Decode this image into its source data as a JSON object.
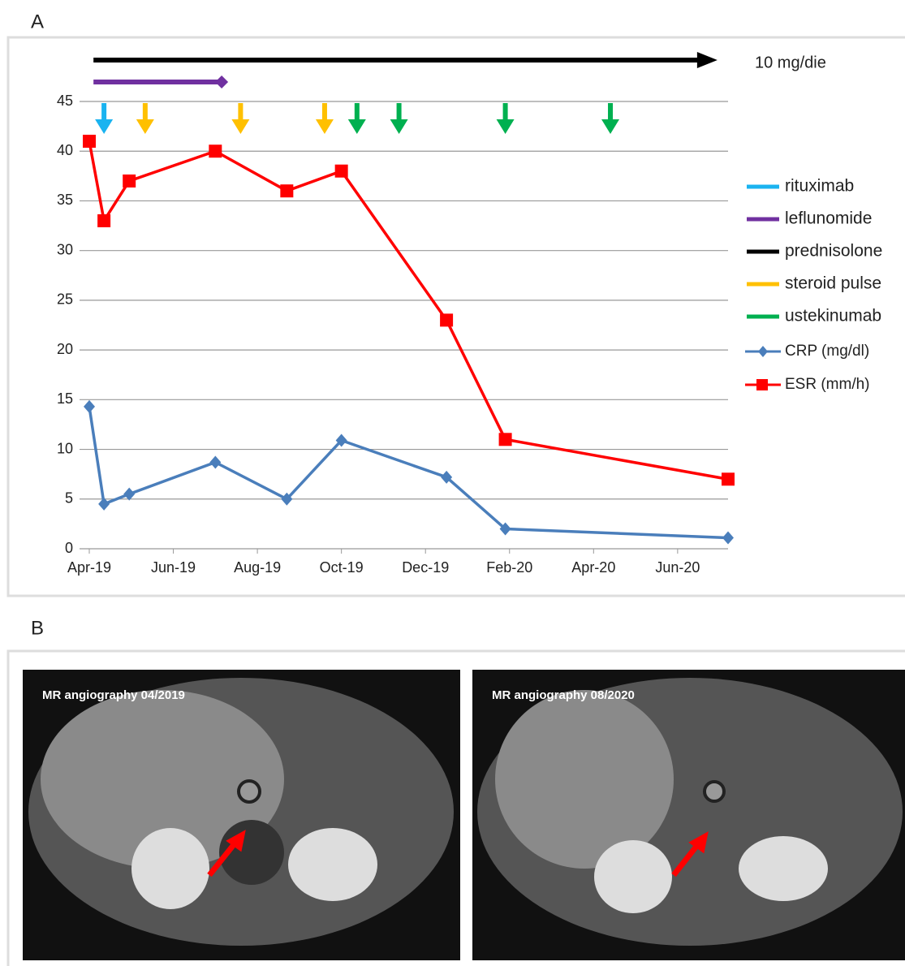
{
  "panel_a": {
    "label": "A"
  },
  "chart_data": {
    "type": "line",
    "x": [
      0,
      0.35,
      0.95,
      3.0,
      4.7,
      6.0,
      8.5,
      9.9,
      15.2
    ],
    "series": [
      {
        "name": "CRP (mg/dl)",
        "color": "#4a7ebb",
        "marker": "diamond",
        "values": [
          14.3,
          4.5,
          5.5,
          8.7,
          5.0,
          10.9,
          7.2,
          2.0,
          1.1
        ]
      },
      {
        "name": "ESR (mm/h)",
        "color": "#ff0000",
        "marker": "square",
        "values": [
          41,
          33,
          37,
          40,
          36,
          38,
          23,
          11,
          7
        ]
      }
    ],
    "xlim": [
      0,
      15.2
    ],
    "xticks": [
      {
        "value": 0,
        "label": "Apr-19"
      },
      {
        "value": 2,
        "label": "Jun-19"
      },
      {
        "value": 4,
        "label": "Aug-19"
      },
      {
        "value": 6,
        "label": "Oct-19"
      },
      {
        "value": 8,
        "label": "Dec-19"
      },
      {
        "value": 10,
        "label": "Feb-20"
      },
      {
        "value": 12,
        "label": "Apr-20"
      },
      {
        "value": 14,
        "label": "Jun-20"
      }
    ],
    "ylim": [
      0,
      45
    ],
    "yticks": [
      0,
      5,
      10,
      15,
      20,
      25,
      30,
      35,
      40,
      45
    ],
    "grid": true,
    "treatments": [
      {
        "name": "rituximab",
        "color": "#1ab3f0",
        "kind": "event",
        "x": [
          0.35
        ]
      },
      {
        "name": "leflunomide",
        "color": "#7030a0",
        "kind": "period",
        "x": [
          0.1,
          3.15
        ]
      },
      {
        "name": "prednisolone",
        "color": "#000000",
        "kind": "period",
        "x": [
          0.1,
          14.85
        ],
        "annotation": "10 mg/die"
      },
      {
        "name": "steroid pulse",
        "color": "#ffc000",
        "kind": "event",
        "x": [
          1.33,
          3.6,
          5.6
        ]
      },
      {
        "name": "ustekinumab",
        "color": "#00b050",
        "kind": "event",
        "x": [
          6.37,
          7.37,
          9.9,
          12.4
        ]
      }
    ]
  },
  "panel_b": {
    "label": "B",
    "images": [
      {
        "caption": "MR angiography  04/2019"
      },
      {
        "caption": "MR angiography  08/2020"
      }
    ]
  }
}
